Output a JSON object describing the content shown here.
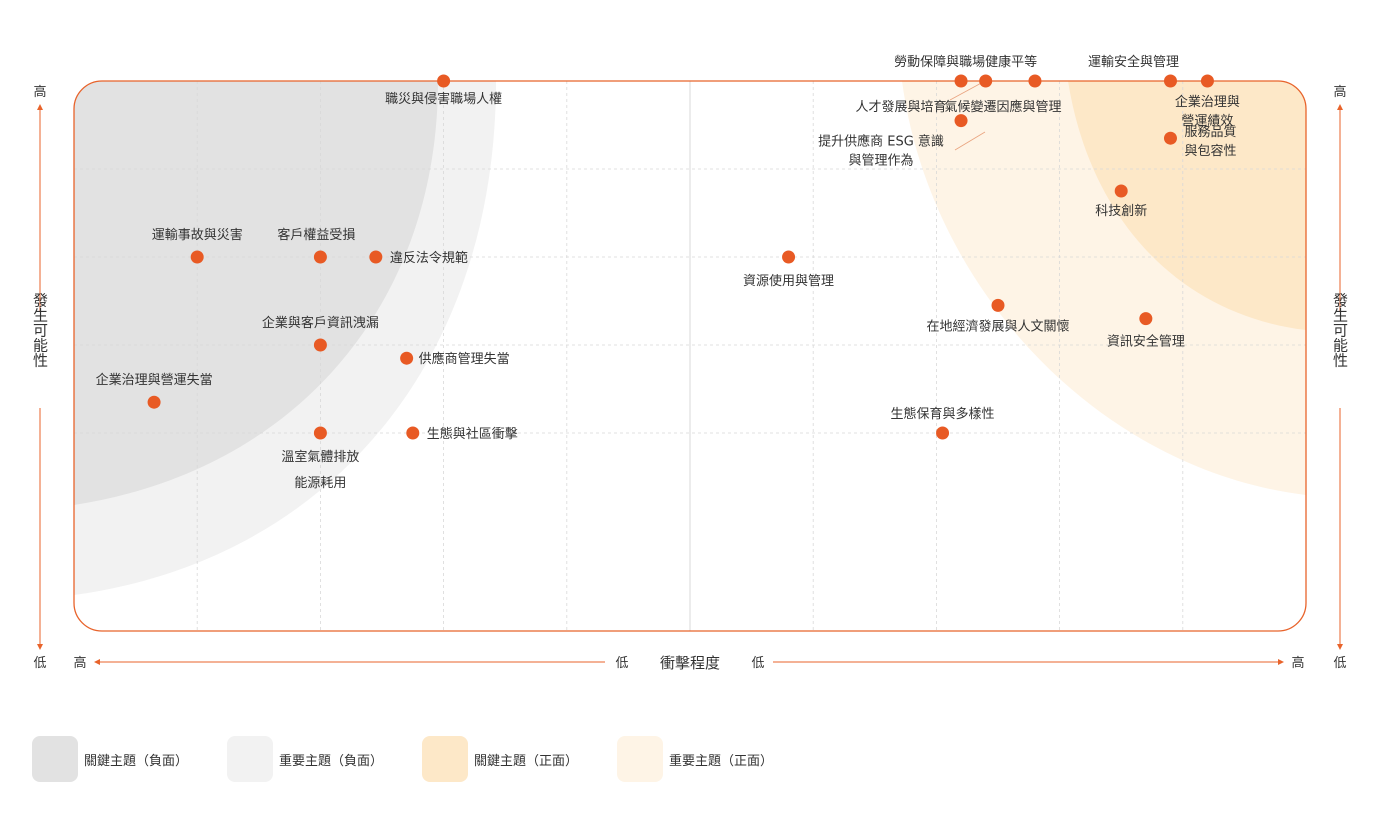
{
  "chart_data": {
    "type": "scatter",
    "x_axis": {
      "title": "衝擊程度",
      "left_high": "高",
      "left_low": "低",
      "right_low": "低",
      "right_high": "高"
    },
    "y_axis": {
      "title": "發生可能性",
      "high": "高",
      "low": "低"
    },
    "zone_colors": {
      "key_negative": "#e2e2e2",
      "important_negative": "#f2f2f2",
      "key_positive": "#fde8c8",
      "important_positive": "#fef4e6"
    },
    "point_color": "#e85a24",
    "border_color": "#e8632b",
    "points": [
      {
        "label": "職災與侵害職場人權",
        "x": 3.0,
        "y": 5.0
      },
      {
        "label": "運輸事故與災害",
        "x": 1.0,
        "y": 3.0
      },
      {
        "label": "客戶權益受損",
        "x": 2.0,
        "y": 3.0
      },
      {
        "label": "違反法令規範",
        "x": 2.45,
        "y": 3.0
      },
      {
        "label": "企業與客戶資訊洩漏",
        "x": 2.0,
        "y": 2.0
      },
      {
        "label": "供應商管理失當",
        "x": 2.7,
        "y": 1.85
      },
      {
        "label": "企業治理與營運失當",
        "x": 0.65,
        "y": 1.35
      },
      {
        "label": "溫室氣體排放",
        "x": 2.0,
        "y": 1.0
      },
      {
        "label": "能源耗用",
        "x": 2.0,
        "y": 1.0
      },
      {
        "label": "生態與社區衝擊",
        "x": 2.75,
        "y": 1.0
      },
      {
        "label": "資源使用與管理",
        "x": 5.8,
        "y": 3.0
      },
      {
        "label": "勞動保障與職場健康平等",
        "x": 7.4,
        "y": 5.0
      },
      {
        "label": "人才發展與培育",
        "x": 7.2,
        "y": 5.0
      },
      {
        "label": "氣候變遷因應與管理",
        "x": 7.8,
        "y": 5.0
      },
      {
        "label": "運輸安全與管理",
        "x": 8.9,
        "y": 5.0
      },
      {
        "label": "企業治理與營運績效",
        "x": 9.2,
        "y": 5.0
      },
      {
        "label": "提升供應商 ESG 意識與管理作為",
        "x": 7.2,
        "y": 4.55
      },
      {
        "label": "服務品質與包容性",
        "x": 8.9,
        "y": 4.35
      },
      {
        "label": "科技創新",
        "x": 8.5,
        "y": 3.75
      },
      {
        "label": "資訊安全管理",
        "x": 8.7,
        "y": 2.3
      },
      {
        "label": "在地經濟發展與人文關懷",
        "x": 7.5,
        "y": 2.45
      },
      {
        "label": "生態保育與多樣性",
        "x": 7.05,
        "y": 1.0
      }
    ],
    "legend": [
      {
        "name": "關鍵主題（負面）",
        "color": "#e2e2e2"
      },
      {
        "name": "重要主題（負面）",
        "color": "#f2f2f2"
      },
      {
        "name": "關鍵主題（正面）",
        "color": "#fde8c8"
      },
      {
        "name": "重要主題（正面）",
        "color": "#fef4e6"
      }
    ]
  }
}
